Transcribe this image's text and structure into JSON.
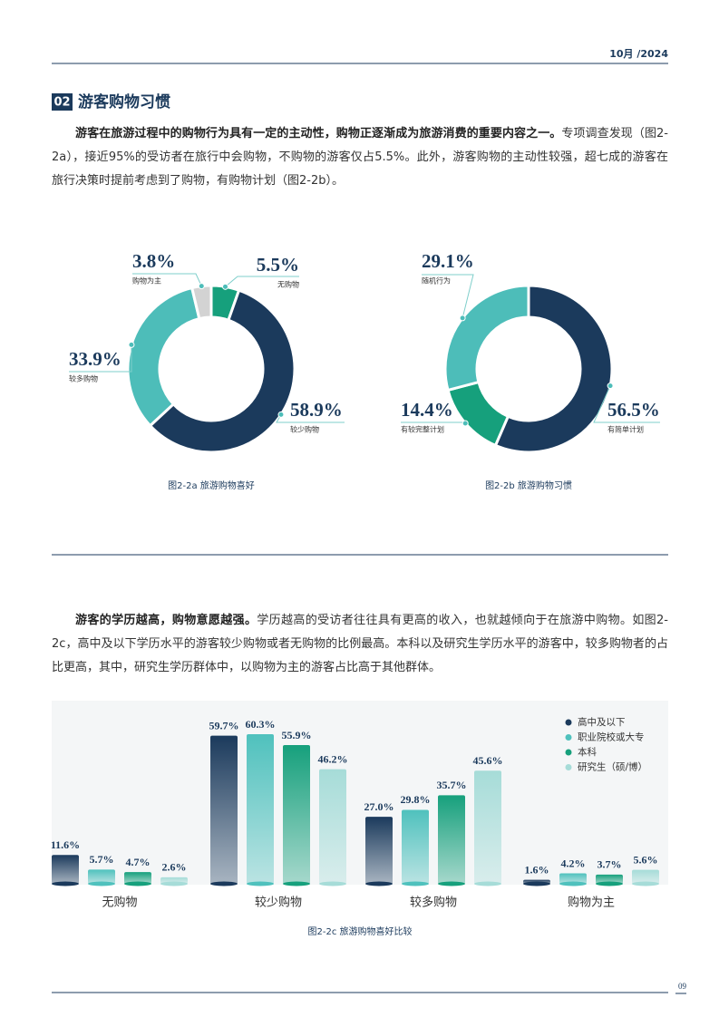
{
  "header": {
    "date": "10月 /2024"
  },
  "section": {
    "number": "02",
    "title": "游客购物习惯"
  },
  "paragraphs": [
    {
      "lead": "游客在旅游过程中的购物行为具有一定的主动性，购物正逐渐成为旅游消费的重要内容之一。",
      "text": "专项调查发现（图2-2a），接近95%的受访者在旅行中会购物，不购物的游客仅占5.5%。此外，游客购物的主动性较强，超七成的游客在旅行决策时提前考虑到了购物，有购物计划（图2-2b）。"
    },
    {
      "lead": "游客的学历越高，购物意愿越强。",
      "text": "学历越高的受访者往往具有更高的收入，也就越倾向于在旅游中购物。如图2-2c，高中及以下学历水平的游客较少购物或者无购物的比例最高。本科以及研究生学历水平的游客中，较多购物者的占比更高，其中，研究生学历群体中，以购物为主的游客占比高于其他群体。"
    }
  ],
  "chart_data": [
    {
      "type": "pie",
      "caption": "图2-2a 旅游购物喜好",
      "categories": [
        "无购物",
        "较少购物",
        "较多购物",
        "购物为主"
      ],
      "values": [
        5.5,
        58.9,
        33.9,
        3.8
      ],
      "value_labels": [
        "5.5%",
        "58.9%",
        "33.9%",
        "3.8%"
      ],
      "colors": [
        "#16a07c",
        "#1b3a5c",
        "#4dbdb9",
        "#d3d3d3"
      ]
    },
    {
      "type": "pie",
      "caption": "图2-2b 旅游购物习惯",
      "categories": [
        "有简单计划",
        "有较完整计划",
        "随机行为"
      ],
      "values": [
        56.5,
        14.4,
        29.1
      ],
      "value_labels": [
        "56.5%",
        "14.4%",
        "29.1%"
      ],
      "colors": [
        "#1b3a5c",
        "#16a07c",
        "#4dbdb9"
      ]
    },
    {
      "type": "bar",
      "caption": "图2-2c 旅游购物喜好比较",
      "legend": "upper right",
      "categories": [
        "无购物",
        "较少购物",
        "较多购物",
        "购物为主"
      ],
      "series": [
        {
          "name": "高中及以下",
          "color": "#1b3a5c",
          "values": [
            11.6,
            59.7,
            27.0,
            1.6
          ],
          "value_labels": [
            "11.6%",
            "59.7%",
            "27.0%",
            "1.6%"
          ]
        },
        {
          "name": "职业院校或大专",
          "color": "#4fc1bd",
          "values": [
            5.7,
            60.3,
            29.8,
            4.2
          ],
          "value_labels": [
            "5.7%",
            "60.3%",
            "29.8%",
            "4.2%"
          ]
        },
        {
          "name": "本科",
          "color": "#16a07c",
          "values": [
            4.7,
            55.9,
            35.7,
            3.7
          ],
          "value_labels": [
            "4.7%",
            "55.9%",
            "35.7%",
            "3.7%"
          ]
        },
        {
          "name": "研究生（硕/博）",
          "color": "#a6dcd8",
          "values": [
            2.6,
            46.2,
            45.6,
            5.6
          ],
          "value_labels": [
            "2.6%",
            "46.2%",
            "45.6%",
            "5.6%"
          ]
        }
      ]
    }
  ],
  "footer": {
    "page": "09"
  }
}
